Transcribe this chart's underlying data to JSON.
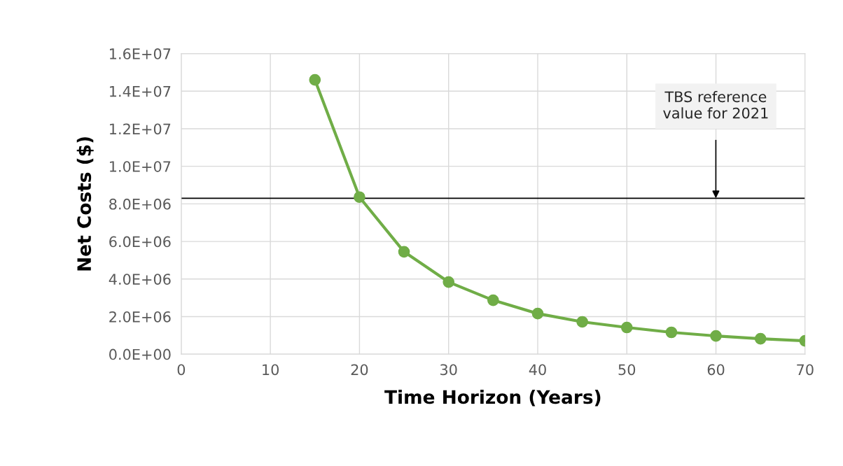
{
  "chart_data": {
    "type": "line",
    "xlabel": "Time Horizon (Years)",
    "ylabel": "Net Costs ($)",
    "x": [
      15,
      20,
      25,
      30,
      35,
      40,
      45,
      50,
      55,
      60,
      65,
      70
    ],
    "series": [
      {
        "color": "#70ad47",
        "values": [
          14600000,
          8360000,
          5450000,
          3840000,
          2870000,
          2160000,
          1720000,
          1420000,
          1160000,
          970000,
          820000,
          710000
        ]
      }
    ],
    "marker": "circle",
    "line_style": "solid",
    "grid": true,
    "xlim": [
      0,
      70
    ],
    "xticks": [
      0,
      10,
      20,
      30,
      40,
      50,
      60,
      70
    ],
    "ylim": [
      0,
      16000000
    ],
    "yticks": [
      {
        "value": 0,
        "label": "0.0E+00"
      },
      {
        "value": 2000000,
        "label": "2.0E+06"
      },
      {
        "value": 4000000,
        "label": "4.0E+06"
      },
      {
        "value": 6000000,
        "label": "6.0E+06"
      },
      {
        "value": 8000000,
        "label": "8.0E+06"
      },
      {
        "value": 10000000,
        "label": "1.0E+07"
      },
      {
        "value": 12000000,
        "label": "1.2E+07"
      },
      {
        "value": 14000000,
        "label": "1.4E+07"
      },
      {
        "value": 16000000,
        "label": "1.6E+07"
      }
    ],
    "ref_lines": [
      {
        "axis": "y",
        "value": 8300000,
        "color": "#000000",
        "label": "TBS reference\nvalue for 2021"
      }
    ]
  }
}
